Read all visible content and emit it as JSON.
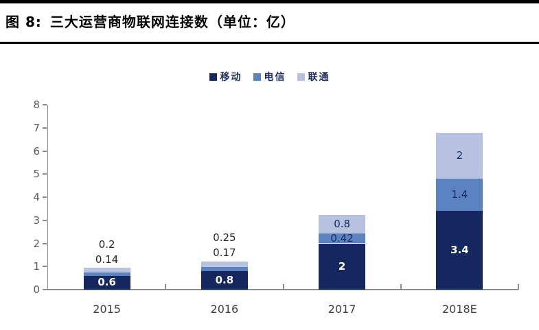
{
  "figure": {
    "title_prefix": "图 8:",
    "title": "三大运营商物联网连接数（单位：亿）"
  },
  "chart_data": {
    "type": "bar",
    "subtype": "stacked-column",
    "title": "三大运营商物联网连接数（单位：亿）",
    "categories": [
      "2015",
      "2016",
      "2017",
      "2018E"
    ],
    "series": [
      {
        "name": "移动",
        "color": "#14275f",
        "label_text_color": "#ffffff",
        "values": [
          0.6,
          0.8,
          2,
          3.4
        ]
      },
      {
        "name": "电信",
        "color": "#5b83c2",
        "label_text_color": "#17295e",
        "values": [
          0.14,
          0.17,
          0.42,
          1.4
        ]
      },
      {
        "name": "联通",
        "color": "#b7c2e0",
        "label_text_color": "#17295e",
        "values": [
          0.2,
          0.25,
          0.8,
          2
        ]
      }
    ],
    "data_labels": [
      [
        "0.6",
        "0.8",
        "2",
        "3.4"
      ],
      [
        "0.14",
        "0.17",
        "0.42",
        "1.4"
      ],
      [
        "0.2",
        "0.25",
        "0.8",
        "2"
      ]
    ],
    "xlabel": "",
    "ylabel": "",
    "ylim": [
      0,
      8
    ],
    "yticks": [
      0,
      1,
      2,
      3,
      4,
      5,
      6,
      7,
      8
    ],
    "grid": false,
    "legend_position": "top",
    "style": {
      "axis_color": "#8a8a8a",
      "tick_label_color": "#595959",
      "category_label_color": "#3f3f3f",
      "outside_label_color": "#262626",
      "legend_text_color": "#1f3060",
      "header_rule_color": "#000000"
    }
  }
}
